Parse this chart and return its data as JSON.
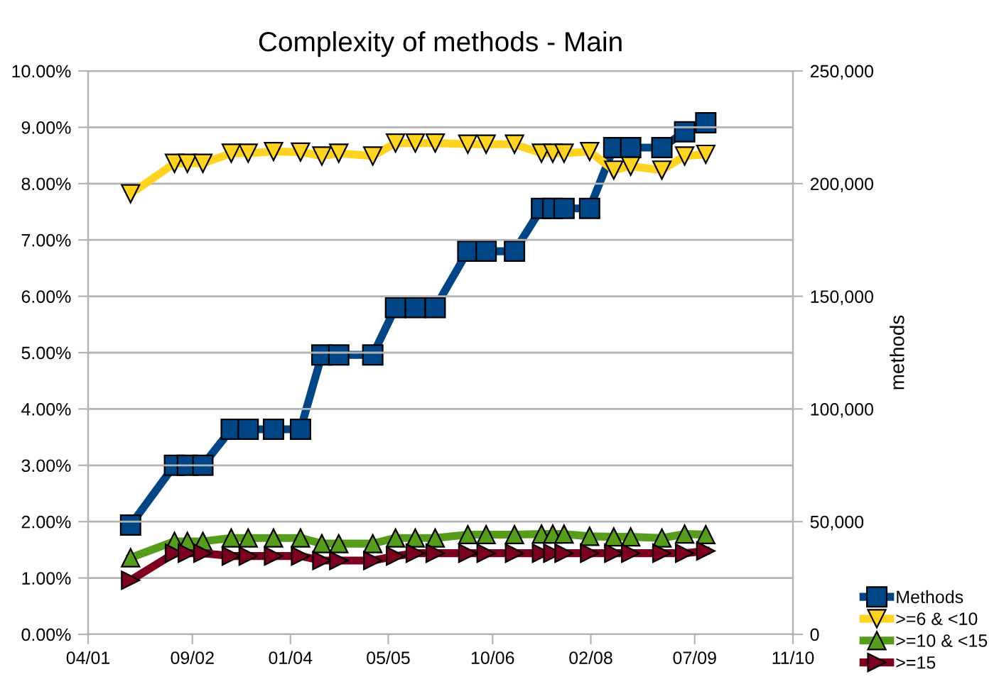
{
  "chart_data": {
    "type": "line",
    "title": "Complexity of methods - Main",
    "y2label": "methods",
    "x": [
      "2001-10-29",
      "2002-06-04",
      "2002-08-07",
      "2002-10-23",
      "2003-03-13",
      "2003-06-05",
      "2003-10-09",
      "2004-02-20",
      "2004-06-05",
      "2004-08-28",
      "2005-02-13",
      "2005-06-06",
      "2005-09-12",
      "2005-12-20",
      "2006-05-31",
      "2006-08-30",
      "2007-01-18",
      "2007-06-01",
      "2007-07-27",
      "2007-09-21",
      "2008-01-26",
      "2008-05-25",
      "2008-08-17",
      "2009-01-19",
      "2009-05-12",
      "2009-08-25"
    ],
    "series": [
      {
        "name": "Methods",
        "color": "#004586",
        "axis": "y2",
        "marker": "square",
        "values": [
          48500,
          75000,
          75000,
          75000,
          91000,
          91000,
          91000,
          91000,
          124000,
          124000,
          124000,
          145000,
          145000,
          145000,
          170000,
          170000,
          170000,
          189000,
          189000,
          189000,
          189000,
          216000,
          216000,
          216000,
          223000,
          227000
        ]
      },
      {
        "name": ">=6 & <10",
        "color": "#ffd320",
        "axis": "y",
        "marker": "triangle_down",
        "values": [
          7.82,
          8.36,
          8.36,
          8.36,
          8.54,
          8.54,
          8.57,
          8.56,
          8.49,
          8.54,
          8.49,
          8.72,
          8.72,
          8.72,
          8.7,
          8.7,
          8.7,
          8.54,
          8.54,
          8.54,
          8.57,
          8.24,
          8.31,
          8.24,
          8.49,
          8.52
        ]
      },
      {
        "name": ">=10 & <15",
        "color": "#579d1c",
        "axis": "y",
        "marker": "triangle",
        "values": [
          1.36,
          1.65,
          1.65,
          1.65,
          1.71,
          1.71,
          1.71,
          1.71,
          1.61,
          1.61,
          1.61,
          1.71,
          1.71,
          1.71,
          1.77,
          1.77,
          1.77,
          1.78,
          1.78,
          1.78,
          1.74,
          1.73,
          1.73,
          1.71,
          1.78,
          1.77
        ]
      },
      {
        "name": ">=15",
        "color": "#7e0021",
        "axis": "y",
        "marker": "triangle_right",
        "values": [
          0.96,
          1.44,
          1.44,
          1.44,
          1.39,
          1.39,
          1.39,
          1.39,
          1.31,
          1.31,
          1.31,
          1.39,
          1.44,
          1.44,
          1.44,
          1.44,
          1.44,
          1.44,
          1.44,
          1.44,
          1.44,
          1.44,
          1.44,
          1.44,
          1.44,
          1.48
        ]
      }
    ],
    "xlim": [
      "2001-04-01",
      "2010-11-01"
    ],
    "xticks": [
      {
        "value": "2001-04-01",
        "label": "04/01"
      },
      {
        "value": "2002-09-01",
        "label": "09/02"
      },
      {
        "value": "2004-01-01",
        "label": "01/04"
      },
      {
        "value": "2005-05-01",
        "label": "05/05"
      },
      {
        "value": "2006-10-01",
        "label": "10/06"
      },
      {
        "value": "2008-02-01",
        "label": "02/08"
      },
      {
        "value": "2009-07-01",
        "label": "07/09"
      },
      {
        "value": "2010-11-01",
        "label": "11/10"
      }
    ],
    "ylim": [
      0,
      10
    ],
    "yticks": [
      {
        "value": 0,
        "label": "0.00%"
      },
      {
        "value": 1,
        "label": "1.00%"
      },
      {
        "value": 2,
        "label": "2.00%"
      },
      {
        "value": 3,
        "label": "3.00%"
      },
      {
        "value": 4,
        "label": "4.00%"
      },
      {
        "value": 5,
        "label": "5.00%"
      },
      {
        "value": 6,
        "label": "6.00%"
      },
      {
        "value": 7,
        "label": "7.00%"
      },
      {
        "value": 8,
        "label": "8.00%"
      },
      {
        "value": 9,
        "label": "9.00%"
      },
      {
        "value": 10,
        "label": "10.00%"
      }
    ],
    "y2lim": [
      0,
      250000
    ],
    "y2ticks": [
      0,
      {
        "value": 50000,
        "label": "50,000"
      },
      {
        "value": 100000,
        "label": "100,000"
      },
      {
        "value": 150000,
        "label": "150,000"
      },
      {
        "value": 200000,
        "label": "200,000"
      },
      {
        "value": 250000,
        "label": "250,000"
      }
    ],
    "grid": "y",
    "legend": "bottom right",
    "line_style": "solid"
  }
}
